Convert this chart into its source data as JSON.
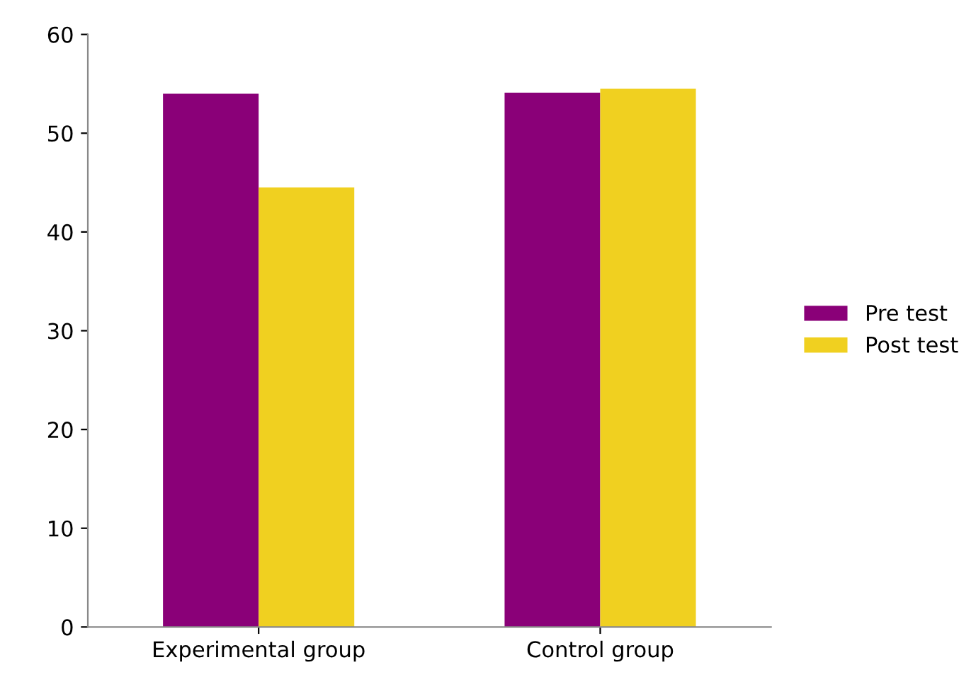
{
  "chart_data": {
    "type": "bar",
    "categories": [
      "Experimental group",
      "Control group"
    ],
    "series": [
      {
        "name": "Pre test",
        "color": "#8a0078",
        "values": [
          54.0,
          54.1
        ]
      },
      {
        "name": "Post test",
        "color": "#f0d020",
        "values": [
          44.5,
          54.5
        ]
      }
    ],
    "ylim": [
      0,
      60
    ],
    "yticks": [
      0,
      10,
      20,
      30,
      40,
      50,
      60
    ],
    "grid": false,
    "legend": "right"
  }
}
